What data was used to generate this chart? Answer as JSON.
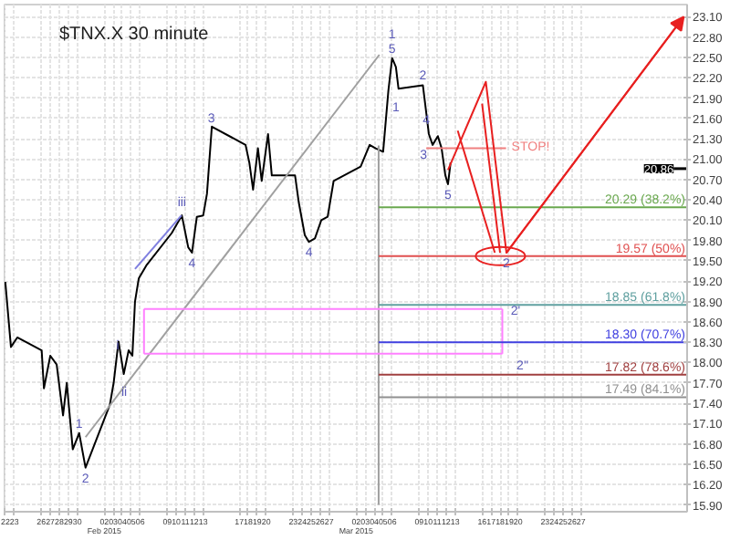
{
  "chart_data": {
    "type": "line",
    "title": "$TNX.X 30 minute",
    "xlim": [
      "2015-01-21T22:00",
      "2015-04-07T19:00"
    ],
    "ylim": [
      15.8,
      23.28
    ],
    "xticks": [
      {
        "value": "2015-01-22",
        "label": "22"
      },
      {
        "value": "2015-01-23",
        "label": "23"
      },
      {
        "value": "2015-01-26",
        "label": "26"
      },
      {
        "value": "2015-01-27",
        "label": "27"
      },
      {
        "value": "2015-01-28",
        "label": "28"
      },
      {
        "value": "2015-01-29",
        "label": "29"
      },
      {
        "value": "2015-01-30",
        "label": "30"
      },
      {
        "value": "2015-02-02",
        "label": "02\nFeb 2015"
      },
      {
        "value": "2015-02-03",
        "label": "03"
      },
      {
        "value": "2015-02-04",
        "label": "04"
      },
      {
        "value": "2015-02-05",
        "label": "05"
      },
      {
        "value": "2015-02-06",
        "label": "06"
      },
      {
        "value": "2015-02-09",
        "label": "09"
      },
      {
        "value": "2015-02-10",
        "label": "10"
      },
      {
        "value": "2015-02-11",
        "label": "11"
      },
      {
        "value": "2015-02-12",
        "label": "12"
      },
      {
        "value": "2015-02-13",
        "label": "13"
      },
      {
        "value": "2015-02-17",
        "label": "17"
      },
      {
        "value": "2015-02-18",
        "label": "18"
      },
      {
        "value": "2015-02-19",
        "label": "19"
      },
      {
        "value": "2015-02-20",
        "label": "20"
      },
      {
        "value": "2015-02-23",
        "label": "23"
      },
      {
        "value": "2015-02-24",
        "label": "24"
      },
      {
        "value": "2015-02-25",
        "label": "25"
      },
      {
        "value": "2015-02-26",
        "label": "26"
      },
      {
        "value": "2015-02-27",
        "label": "27"
      },
      {
        "value": "2015-03-02",
        "label": "02\nMar 2015"
      },
      {
        "value": "2015-03-03",
        "label": "03"
      },
      {
        "value": "2015-03-04",
        "label": "04"
      },
      {
        "value": "2015-03-05",
        "label": "05"
      },
      {
        "value": "2015-03-06",
        "label": "06"
      },
      {
        "value": "2015-03-09",
        "label": "09"
      },
      {
        "value": "2015-03-10",
        "label": "10"
      },
      {
        "value": "2015-03-11",
        "label": "11"
      },
      {
        "value": "2015-03-12",
        "label": "12"
      },
      {
        "value": "2015-03-13",
        "label": "13"
      },
      {
        "value": "2015-03-16",
        "label": "16"
      },
      {
        "value": "2015-03-17",
        "label": "17"
      },
      {
        "value": "2015-03-18",
        "label": "18"
      },
      {
        "value": "2015-03-19",
        "label": "19"
      },
      {
        "value": "2015-03-20",
        "label": "20"
      },
      {
        "value": "2015-03-23",
        "label": "23"
      },
      {
        "value": "2015-03-24",
        "label": "24"
      },
      {
        "value": "2015-03-25",
        "label": "25"
      },
      {
        "value": "2015-03-26",
        "label": "26"
      },
      {
        "value": "2015-03-27",
        "label": "27"
      }
    ],
    "yticks": [
      {
        "value": 15.9,
        "label": "15.90"
      },
      {
        "value": 16.2,
        "label": "16.20"
      },
      {
        "value": 16.5,
        "label": "16.50"
      },
      {
        "value": 16.8,
        "label": "16.80"
      },
      {
        "value": 17.1,
        "label": "17.10"
      },
      {
        "value": 17.4,
        "label": "17.40"
      },
      {
        "value": 17.7,
        "label": "17.70"
      },
      {
        "value": 18.0,
        "label": "18.00"
      },
      {
        "value": 18.3,
        "label": "18.30"
      },
      {
        "value": 18.6,
        "label": "18.60"
      },
      {
        "value": 18.9,
        "label": "18.90"
      },
      {
        "value": 19.2,
        "label": "19.20"
      },
      {
        "value": 19.5,
        "label": "19.50"
      },
      {
        "value": 19.8,
        "label": "19.80"
      },
      {
        "value": 20.1,
        "label": "20.10"
      },
      {
        "value": 20.4,
        "label": "20.40"
      },
      {
        "value": 20.7,
        "label": "20.70"
      },
      {
        "value": 21.0,
        "label": "21.00"
      },
      {
        "value": 21.3,
        "label": "21.30"
      },
      {
        "value": 21.6,
        "label": "21.60"
      },
      {
        "value": 21.9,
        "label": "21.90"
      },
      {
        "value": 22.2,
        "label": "22.20"
      },
      {
        "value": 22.5,
        "label": "22.50"
      },
      {
        "value": 22.8,
        "label": "22.80"
      },
      {
        "value": 23.1,
        "label": "23.10"
      }
    ],
    "grid": true,
    "marker": "none",
    "line_style": "solid",
    "series": [
      {
        "color": "#000000",
        "x": [
          "2015-01-22T00:00",
          "2015-01-22T15:00",
          "2015-01-23T08:00",
          "2015-01-26T01:00",
          "2015-01-26T07:00",
          "2015-01-27T00:00",
          "2015-01-27T17:00",
          "2015-01-28T10:00",
          "2015-01-28T20:00",
          "2015-01-29T12:00",
          "2015-01-30T05:00",
          "2015-01-30T22:00",
          "2015-02-02T15:00",
          "2015-02-03T01:00",
          "2015-02-03T14:00",
          "2015-02-04T04:00",
          "2015-02-04T17:00",
          "2015-02-05T03:00",
          "2015-02-05T10:00",
          "2015-02-05T20:00",
          "2015-02-06T16:00",
          "2015-02-09T12:00",
          "2015-02-10T15:00",
          "2015-02-11T08:00",
          "2015-02-11T18:00",
          "2015-02-12T07:00",
          "2015-02-13T00:00",
          "2015-02-13T10:00",
          "2015-02-13T23:00",
          "2015-02-17T17:00",
          "2015-02-18T03:00",
          "2015-02-18T13:00",
          "2015-02-19T02:00",
          "2015-02-19T12:00",
          "2015-02-20T05:00",
          "2015-02-20T15:00",
          "2015-02-23T05:00",
          "2015-02-23T15:00",
          "2015-02-24T07:00",
          "2015-02-24T18:00",
          "2015-02-25T10:00",
          "2015-02-26T03:00",
          "2015-02-26T20:00",
          "2015-02-27T12:00",
          "2015-03-02T12:00",
          "2015-03-03T12:00",
          "2015-03-04T04:00",
          "2015-03-05T00:00",
          "2015-03-05T14:00",
          "2015-03-06T00:00",
          "2015-03-06T10:00",
          "2015-03-06T17:00",
          "2015-03-09T10:00",
          "2015-03-10T02:00",
          "2015-03-10T12:00",
          "2015-03-11T02:00",
          "2015-03-11T12:00",
          "2015-03-11T22:00",
          "2015-03-12T05:00",
          "2015-03-12T12:00"
        ],
        "values": [
          19.19,
          18.23,
          18.37,
          18.18,
          17.62,
          18.1,
          17.97,
          17.22,
          17.7,
          16.72,
          16.96,
          16.45,
          17.38,
          17.7,
          18.31,
          17.83,
          18.18,
          18.1,
          18.9,
          19.24,
          19.43,
          19.91,
          20.17,
          19.7,
          19.62,
          20.15,
          20.17,
          20.49,
          21.48,
          21.21,
          20.95,
          20.55,
          21.16,
          20.68,
          21.37,
          20.76,
          20.76,
          20.36,
          19.88,
          19.78,
          19.83,
          20.1,
          20.15,
          20.68,
          20.89,
          21.21,
          21.16,
          21.11,
          22.01,
          22.49,
          22.36,
          22.04,
          22.09,
          21.37,
          21.21,
          21.34,
          21.16,
          20.76,
          20.63,
          20.95
        ]
      },
      {
        "color": "#a0a0a0",
        "x": [
          "2015-01-30T22:00",
          "2015-03-04T14:00"
        ],
        "values": [
          16.9,
          22.54
        ]
      },
      {
        "color": "#8080e0",
        "x": [
          "2015-02-05T10:00",
          "2015-02-10T14:00"
        ],
        "values": [
          19.38,
          20.17
        ]
      },
      {
        "color": "#a0a0a0",
        "x": [
          "2015-03-04T12:00",
          "2015-03-04T12:00"
        ],
        "values": [
          21.2,
          15.9
        ]
      },
      {
        "color": "#ff80ff",
        "x": [
          "2015-02-06T10:00",
          "2015-03-18T06:00"
        ],
        "values": [
          18.79,
          18.79
        ]
      },
      {
        "color": "#ff80ff",
        "x": [
          "2015-02-06T10:00",
          "2015-03-18T06:00"
        ],
        "values": [
          18.13,
          18.13
        ]
      },
      {
        "color": "#ff80ff",
        "x": [
          "2015-02-06T10:00",
          "2015-02-06T10:00"
        ],
        "values": [
          18.79,
          18.13
        ]
      },
      {
        "color": "#ff80ff",
        "x": [
          "2015-03-18T06:00",
          "2015-03-18T06:00"
        ],
        "values": [
          18.79,
          18.13
        ]
      },
      {
        "name": "20.29 (38.2%)",
        "color": "#6aa84f",
        "x": [
          "2015-03-04T12:00",
          "2015-04-07T19:00"
        ],
        "values": [
          20.29,
          20.29
        ]
      },
      {
        "name": "19.57 (50%)",
        "color": "#e05050",
        "x": [
          "2015-03-04T12:00",
          "2015-04-07T19:00"
        ],
        "values": [
          19.57,
          19.57
        ]
      },
      {
        "name": "18.85 (61.8%)",
        "color": "#60a0a0",
        "x": [
          "2015-03-04T12:00",
          "2015-04-07T19:00"
        ],
        "values": [
          18.85,
          18.85
        ]
      },
      {
        "name": "18.30 (70.7%)",
        "color": "#4040e0",
        "x": [
          "2015-03-04T12:00",
          "2015-04-07T19:00"
        ],
        "values": [
          18.3,
          18.3
        ]
      },
      {
        "name": "17.82 (78.6%)",
        "color": "#a04040",
        "x": [
          "2015-03-04T12:00",
          "2015-04-07T19:00"
        ],
        "values": [
          17.82,
          17.82
        ]
      },
      {
        "name": "17.49 (84.1%)",
        "color": "#909090",
        "x": [
          "2015-03-04T12:00",
          "2015-04-07T19:00"
        ],
        "values": [
          17.49,
          17.49
        ]
      },
      {
        "name": "STOP!",
        "color": "#f08080",
        "x": [
          "2015-03-09T19:00",
          "2015-03-18T16:00"
        ],
        "values": [
          21.16,
          21.16
        ]
      },
      {
        "color": "#e82020",
        "x": [
          "2015-03-12T05:00",
          "2015-03-16T10:00",
          "2015-03-18T17:00",
          "2015-04-07T10:00"
        ],
        "values": [
          20.84,
          22.14,
          19.62,
          23.1
        ]
      },
      {
        "color": "#e82020",
        "x": [
          "2015-03-13T07:00",
          "2015-03-17T10:00"
        ],
        "values": [
          21.42,
          19.62
        ]
      },
      {
        "color": "#e82020",
        "x": [
          "2015-03-16T00:00",
          "2015-03-18T00:00"
        ],
        "values": [
          21.82,
          19.62
        ]
      }
    ],
    "ref_lines": [
      {
        "axis": "y",
        "value": 20.86,
        "label": "20.86",
        "color": "#000000"
      }
    ],
    "annotations": [
      {
        "text": "1",
        "x": "2015-01-30T05:00",
        "y": 16.96
      },
      {
        "text": "2",
        "x": "2015-01-30T22:00",
        "y": 16.45
      },
      {
        "text": "3",
        "x": "2015-02-13T22:00",
        "y": 21.61
      },
      {
        "text": "4",
        "x": "2015-02-24T18:00",
        "y": 19.78
      },
      {
        "text": "5",
        "x": "2015-03-06T00:00",
        "y": 22.49
      },
      {
        "text": "i",
        "x": "2015-02-03T12:00",
        "y": 18.24
      },
      {
        "text": "ii",
        "x": "2015-02-04T05:00",
        "y": 17.55
      },
      {
        "text": "iii",
        "x": "2015-02-10T15:00",
        "y": 20.17
      },
      {
        "text": "4",
        "x": "2015-02-11T18:00",
        "y": 19.62
      },
      {
        "text": "1",
        "x": "2015-03-06T00:00",
        "y": 22.49
      },
      {
        "text": "2",
        "x": "2015-03-18T17:00",
        "y": 19.62
      },
      {
        "text": "2'",
        "x": "2015-03-19T17:00",
        "y": 18.74
      },
      {
        "text": "2''",
        "x": "2015-03-20T12:00",
        "y": 17.94
      },
      {
        "text": "2",
        "x": "2015-03-09T10:00",
        "y": 22.09
      },
      {
        "text": "1",
        "x": "2015-03-06T10:00",
        "y": 21.77
      },
      {
        "text": "4",
        "x": "2015-03-09T19:00",
        "y": 21.58
      },
      {
        "text": "3",
        "x": "2015-03-09T12:00",
        "y": 21.08
      },
      {
        "text": "5",
        "x": "2015-03-12T05:00",
        "y": 20.63
      }
    ]
  }
}
